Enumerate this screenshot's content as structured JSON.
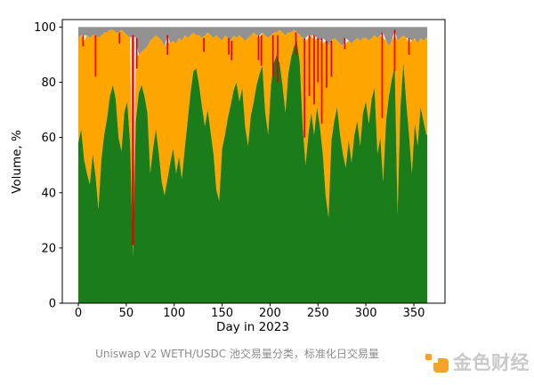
{
  "figure": {
    "x_axis_label": "Day in 2023",
    "y_axis_label": "Volume, %",
    "caption": "Uniswap v2 WETH/USDC 池交易量分类，标准化日交易量"
  },
  "logo": {
    "text": "金色财经",
    "icon": "golden-finance-icon",
    "icon_color": "#f5a427",
    "text_color": "#c9c9c9"
  },
  "chart_data": {
    "type": "area",
    "stacked": true,
    "normalized_percent": true,
    "title": "",
    "xlabel": "Day in 2023",
    "ylabel": "Volume, %",
    "grid": false,
    "legend": null,
    "xlim": [
      -17,
      382
    ],
    "ylim": [
      0,
      105
    ],
    "x_ticks": [
      0,
      50,
      100,
      150,
      200,
      250,
      300,
      350
    ],
    "y_ticks": [
      0,
      20,
      40,
      60,
      80,
      100
    ],
    "series_order_bottom_to_top": [
      "green",
      "orange",
      "red",
      "gray"
    ],
    "colors": {
      "green": "#1a7d1a",
      "orange": "#ffa500",
      "red": "#e60000",
      "gray": "#919191"
    },
    "day_step": 3,
    "days_end": 364,
    "green_cum": [
      58,
      63,
      52,
      47,
      43,
      54,
      46,
      34,
      52,
      61,
      67,
      75,
      79,
      74,
      60,
      55,
      69,
      73,
      58,
      17,
      66,
      76,
      79,
      75,
      69,
      47,
      56,
      63,
      54,
      44,
      39,
      45,
      51,
      56,
      47,
      53,
      45,
      56,
      66,
      76,
      84,
      85,
      79,
      71,
      64,
      70,
      62,
      54,
      41,
      37,
      56,
      61,
      67,
      72,
      77,
      80,
      73,
      78,
      64,
      57,
      68,
      73,
      79,
      83,
      86,
      69,
      61,
      79,
      87,
      90,
      87,
      79,
      69,
      83,
      89,
      93,
      95,
      87,
      64,
      50,
      61,
      69,
      61,
      71,
      64,
      54,
      39,
      31,
      59,
      66,
      71,
      61,
      54,
      49,
      59,
      51,
      61,
      66,
      57,
      69,
      73,
      65,
      74,
      78,
      54,
      60,
      44,
      66,
      75,
      81,
      86,
      32,
      71,
      87,
      73,
      61,
      47,
      65,
      57,
      71,
      66,
      61
    ],
    "orange_cum": [
      96,
      97,
      95,
      97,
      96,
      97,
      97,
      96,
      97,
      98,
      98,
      99,
      99,
      98,
      98,
      99,
      98,
      97,
      96,
      21,
      89,
      90,
      91,
      92,
      93,
      95,
      96,
      97,
      96,
      95,
      93,
      95,
      94,
      95,
      94,
      96,
      95,
      97,
      96,
      97,
      98,
      97,
      97,
      96,
      97,
      98,
      97,
      96,
      97,
      96,
      95,
      97,
      96,
      95,
      97,
      96,
      97,
      96,
      95,
      96,
      97,
      98,
      97,
      96,
      98,
      97,
      96,
      97,
      98,
      98,
      99,
      98,
      97,
      98,
      98,
      99,
      98,
      97,
      96,
      95,
      96,
      97,
      95,
      96,
      95,
      94,
      95,
      93,
      95,
      96,
      95,
      94,
      93,
      94,
      95,
      94,
      95,
      96,
      95,
      96,
      96,
      95,
      96,
      97,
      96,
      97,
      96,
      95,
      93,
      95,
      97,
      95,
      96,
      97,
      96,
      94,
      95,
      96,
      94,
      96,
      95,
      96
    ],
    "gray_top": 100,
    "red_spikes": [
      [
        5,
        93,
        97
      ],
      [
        18,
        82,
        97
      ],
      [
        43,
        94,
        98
      ],
      [
        57,
        21,
        97
      ],
      [
        61,
        85,
        96
      ],
      [
        93,
        90,
        97
      ],
      [
        131,
        91,
        96
      ],
      [
        157,
        90,
        96
      ],
      [
        160,
        88,
        95
      ],
      [
        188,
        88,
        97
      ],
      [
        191,
        86,
        97
      ],
      [
        203,
        82,
        97
      ],
      [
        208,
        80,
        97
      ],
      [
        227,
        90,
        98
      ],
      [
        236,
        60,
        96
      ],
      [
        241,
        75,
        97
      ],
      [
        246,
        72,
        97
      ],
      [
        250,
        80,
        96
      ],
      [
        254,
        65,
        96
      ],
      [
        259,
        78,
        95
      ],
      [
        264,
        82,
        95
      ],
      [
        278,
        92,
        96
      ],
      [
        317,
        67,
        98
      ],
      [
        330,
        84,
        99
      ],
      [
        345,
        90,
        96
      ]
    ]
  }
}
